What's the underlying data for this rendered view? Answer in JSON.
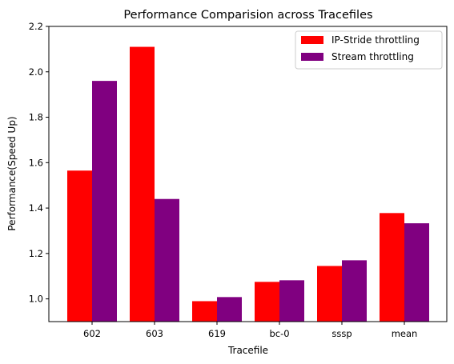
{
  "chart_data": {
    "type": "bar",
    "title": "Performance Comparision across Tracefiles",
    "xlabel": "Tracefile",
    "ylabel": "Performance(Speed Up)",
    "categories": [
      "602",
      "603",
      "619",
      "bc-0",
      "sssp",
      "mean"
    ],
    "series": [
      {
        "name": "IP-Stride throttling",
        "color": "#ff0000",
        "values": [
          1.565,
          2.11,
          0.99,
          1.075,
          1.145,
          1.378
        ]
      },
      {
        "name": "Stream throttling",
        "color": "#800080",
        "values": [
          1.96,
          1.44,
          1.008,
          1.082,
          1.17,
          1.333
        ]
      }
    ],
    "ylim": [
      0.9,
      2.2
    ],
    "yticks": [
      "1.0",
      "1.2",
      "1.4",
      "1.6",
      "1.8",
      "2.0",
      "2.2"
    ],
    "grid": false,
    "legend_position": "top-right"
  }
}
